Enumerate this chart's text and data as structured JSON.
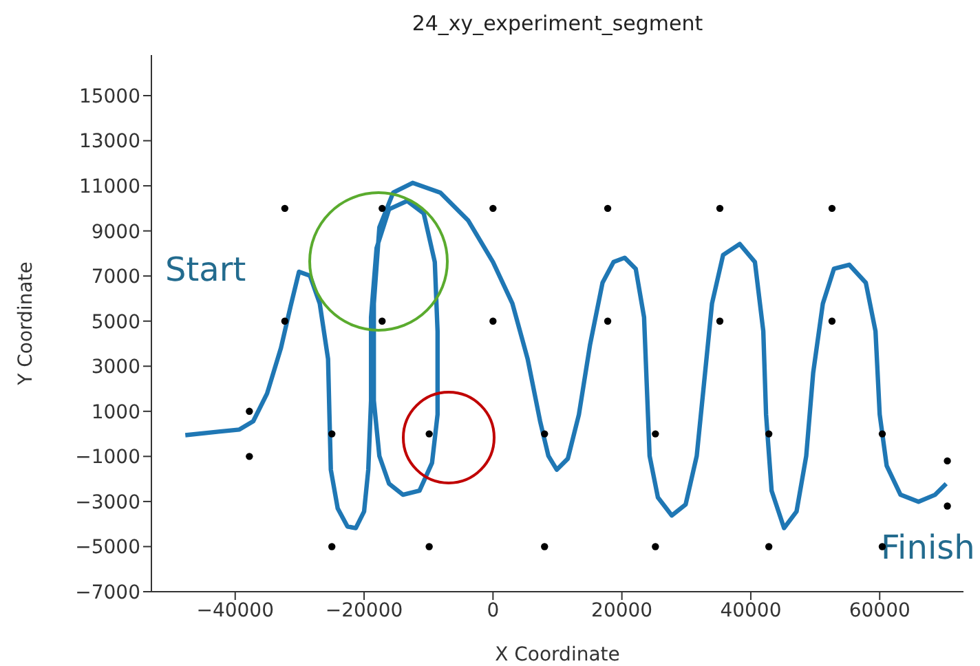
{
  "chart_data": {
    "type": "line",
    "title": "24_xy_experiment_segment",
    "xlabel": "X Coordinate",
    "ylabel": "Y Coordinate",
    "xlim": [
      -53000,
      73000
    ],
    "xticks": [
      -40000,
      -20000,
      0,
      20000,
      40000,
      60000
    ],
    "ylim": [
      -7000,
      16800
    ],
    "yticks": [
      -7000,
      -5000,
      -3000,
      -1000,
      1000,
      3000,
      5000,
      7000,
      9000,
      11000,
      13000,
      15000
    ],
    "series": [
      {
        "color": "#1f77b4",
        "x": [
          -47740,
          -42580,
          -39350,
          -37200,
          -35050,
          -32900,
          -31400,
          -30100,
          -28390,
          -26880,
          -25590,
          -25380,
          -25160,
          -24090,
          -22580,
          -21290,
          -20000,
          -19350,
          -18920,
          -18920,
          -18060,
          -16130,
          -13330,
          -10750,
          -9030,
          -8600,
          -8600,
          -9460,
          -11400,
          -13980,
          -16130,
          -17630,
          -18490,
          -18490,
          -17630,
          -15480,
          -12470,
          -8170,
          -3870,
          0,
          3010,
          5380,
          7310,
          8600,
          9890,
          11610,
          13330,
          15050,
          16990,
          18710,
          20430,
          22150,
          23440,
          23870,
          24300,
          25590,
          27740,
          29890,
          31610,
          32690,
          33980,
          35700,
          38280,
          40640,
          41940,
          42370,
          43230,
          45160,
          47100,
          48600,
          49680,
          51180,
          52900,
          55270,
          57850,
          59350,
          60000,
          61080,
          63230,
          66020,
          68600,
          70320
        ],
        "values": [
          -60,
          100,
          190,
          560,
          1790,
          3810,
          5660,
          7190,
          7010,
          5780,
          3320,
          870,
          -1590,
          -3310,
          -4110,
          -4180,
          -3440,
          -1590,
          1480,
          5170,
          8240,
          9960,
          10330,
          9780,
          7620,
          4550,
          860,
          -1290,
          -2520,
          -2700,
          -2210,
          -980,
          1480,
          5780,
          9160,
          10700,
          11130,
          10700,
          9470,
          7620,
          5780,
          3320,
          560,
          -980,
          -1590,
          -1100,
          860,
          3940,
          6700,
          7620,
          7810,
          7320,
          5170,
          2090,
          -980,
          -2820,
          -3620,
          -3130,
          -980,
          2090,
          5780,
          7930,
          8420,
          7620,
          4550,
          860,
          -2520,
          -4180,
          -3440,
          -980,
          2710,
          5780,
          7320,
          7500,
          6700,
          4550,
          860,
          -1410,
          -2700,
          -3010,
          -2700,
          -2210
        ]
      },
      {
        "type": "scatter",
        "color": "#000000",
        "marker": "circle",
        "x": [
          -32300,
          -17200,
          0,
          17800,
          35200,
          52600,
          -32300,
          -17200,
          0,
          17800,
          35200,
          52600,
          -25000,
          -9900,
          8000,
          25200,
          42800,
          60400,
          -25000,
          -9900,
          8000,
          25200,
          42800,
          60400,
          -37800,
          -37800,
          70500,
          70500
        ],
        "values": [
          10000,
          10000,
          10000,
          10000,
          10000,
          10000,
          5000,
          5000,
          5000,
          5000,
          5000,
          5000,
          0,
          0,
          0,
          0,
          0,
          0,
          -5000,
          -5000,
          -5000,
          -5000,
          -5000,
          -5000,
          1000,
          -1000,
          -1200,
          -3200
        ]
      }
    ],
    "annotations": [
      "Start",
      "Finish"
    ]
  }
}
